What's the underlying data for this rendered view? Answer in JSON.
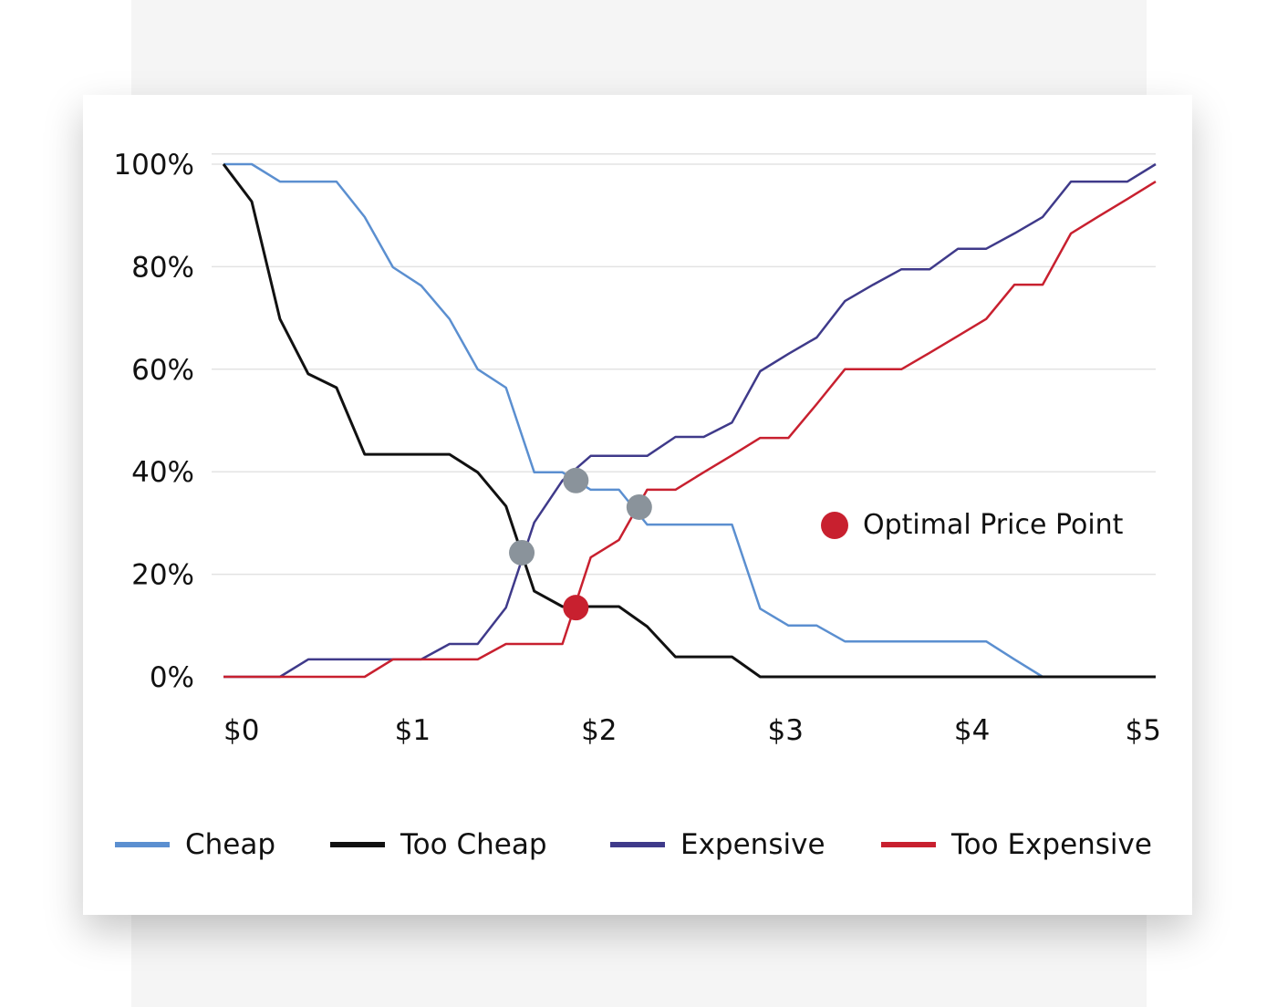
{
  "chart_data": {
    "type": "line",
    "title": "",
    "xlabel": "",
    "ylabel": "",
    "xlim": [
      0,
      5
    ],
    "ylim": [
      0,
      102
    ],
    "grid": true,
    "x_ticks": [
      "$0",
      "$1",
      "$2",
      "$3",
      "$4",
      "$5"
    ],
    "y_ticks": [
      "0%",
      "20%",
      "40%",
      "60%",
      "80%",
      "100%"
    ],
    "x_step_count": 33,
    "series": [
      {
        "name": "Cheap",
        "color": "#5b8fd0",
        "values": [
          100,
          100,
          96.6,
          96.6,
          96.6,
          89.7,
          79.9,
          76.3,
          69.8,
          60,
          56.4,
          39.9,
          39.9,
          36.5,
          36.5,
          29.7,
          29.7,
          29.7,
          29.7,
          13.3,
          10,
          10,
          6.9,
          6.9,
          6.9,
          6.9,
          6.9,
          6.9,
          3.4,
          0,
          0,
          0,
          0,
          0
        ]
      },
      {
        "name": "Too Cheap",
        "color": "#111111",
        "values": [
          100,
          92.7,
          69.8,
          59.1,
          56.4,
          43.4,
          43.4,
          43.4,
          43.4,
          39.9,
          33.3,
          16.7,
          13.7,
          13.7,
          13.7,
          9.8,
          3.9,
          3.9,
          3.9,
          0,
          0,
          0,
          0,
          0,
          0,
          0,
          0,
          0,
          0,
          0,
          0,
          0,
          0,
          0
        ]
      },
      {
        "name": "Expensive",
        "color": "#3f3a8a",
        "values": [
          0,
          0,
          0,
          3.4,
          3.4,
          3.4,
          3.4,
          3.4,
          6.4,
          6.4,
          13.5,
          30.1,
          38.3,
          43.1,
          43.1,
          43.1,
          46.8,
          46.8,
          49.6,
          59.6,
          63,
          66.2,
          73.3,
          76.5,
          79.5,
          79.5,
          83.5,
          83.5,
          86.5,
          89.7,
          96.6,
          96.6,
          96.6,
          100
        ]
      },
      {
        "name": "Too Expensive",
        "color": "#c8202f",
        "values": [
          0,
          0,
          0,
          0,
          0,
          0,
          3.4,
          3.4,
          3.4,
          3.4,
          6.4,
          6.4,
          6.4,
          23.3,
          26.7,
          36.5,
          36.5,
          39.9,
          43.2,
          46.6,
          46.6,
          53.2,
          60,
          60,
          60,
          63.2,
          66.5,
          69.8,
          76.5,
          76.5,
          86.5,
          89.9,
          93.2,
          96.6
        ]
      }
    ],
    "intersections": [
      {
        "x": 1.6,
        "y": 24.2,
        "color": "#8a939b"
      },
      {
        "x": 1.89,
        "y": 38.3,
        "color": "#8a939b"
      },
      {
        "x": 2.23,
        "y": 33.1,
        "color": "#8a939b"
      },
      {
        "x": 1.89,
        "y": 13.5,
        "color": "#c8202f",
        "label": "Optimal Price Point"
      }
    ],
    "annotation": {
      "label": "Optimal Price Point",
      "color": "#c8202f"
    },
    "legend_position": "bottom"
  }
}
